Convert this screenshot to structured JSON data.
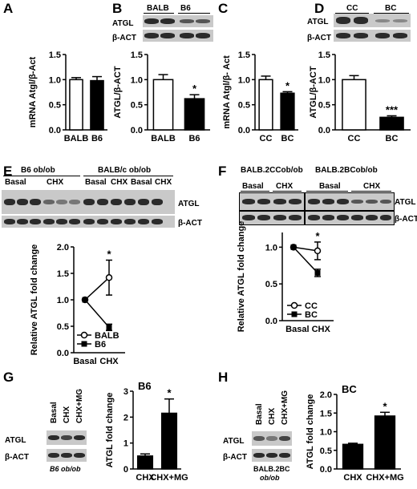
{
  "panels": {
    "A": {
      "letter": "A",
      "ylabel": "mRNA Atgl/β-Act",
      "ylabel_italic_parts": [
        "mRNA ",
        "Atgl",
        "/",
        "β-Act"
      ],
      "chart_data": {
        "type": "bar",
        "categories": [
          "BALB",
          "B6"
        ],
        "values": [
          1.0,
          0.98
        ],
        "errors": [
          0.04,
          0.08
        ],
        "ylim": [
          0,
          1.5
        ],
        "yticks": [
          "0.0",
          "0.5",
          "1.0",
          "1.5"
        ],
        "fills": [
          "#ffffff",
          "#000000"
        ],
        "ylabel": "mRNA Atgl/β-Act",
        "significance": [
          "",
          ""
        ]
      }
    },
    "B": {
      "letter": "B",
      "blot_headers": [
        "BALB",
        "B6"
      ],
      "blot_rows": [
        "ATGL",
        "β-ACT"
      ],
      "chart_data": {
        "type": "bar",
        "categories": [
          "BALB",
          "B6"
        ],
        "values": [
          1.0,
          0.62
        ],
        "errors": [
          0.1,
          0.08
        ],
        "ylim": [
          0,
          1.5
        ],
        "yticks": [
          "0.0",
          "0.5",
          "1.0",
          "1.5"
        ],
        "fills": [
          "#ffffff",
          "#000000"
        ],
        "ylabel": "ATGL/β-ACT",
        "significance": [
          "",
          "*"
        ]
      }
    },
    "C": {
      "letter": "C",
      "chart_data": {
        "type": "bar",
        "categories": [
          "CC",
          "BC"
        ],
        "values": [
          1.0,
          0.73
        ],
        "errors": [
          0.07,
          0.03
        ],
        "ylim": [
          0,
          1.5
        ],
        "yticks": [
          "0.0",
          "0.5",
          "1.0",
          "1.5"
        ],
        "fills": [
          "#ffffff",
          "#000000"
        ],
        "ylabel": "mRNA Atgl/β- Act",
        "significance": [
          "",
          "*"
        ]
      }
    },
    "D": {
      "letter": "D",
      "blot_headers": [
        "CC",
        "BC"
      ],
      "blot_rows": [
        "ATGL",
        "β-ACT"
      ],
      "chart_data": {
        "type": "bar",
        "categories": [
          "CC",
          "BC"
        ],
        "values": [
          1.0,
          0.25
        ],
        "errors": [
          0.08,
          0.03
        ],
        "ylim": [
          0,
          1.5
        ],
        "yticks": [
          "0.0",
          "0.5",
          "1.0",
          "1.5"
        ],
        "fills": [
          "#ffffff",
          "#000000"
        ],
        "ylabel": "ATGL/β-ACT",
        "significance": [
          "",
          "***"
        ]
      }
    },
    "E": {
      "letter": "E",
      "group_headers": [
        "B6 ob/ob",
        "BALB/c ob/ob"
      ],
      "lane_labels": [
        "Basal",
        "CHX",
        "Basal",
        "CHX",
        "Basal",
        "CHX"
      ],
      "blot_rows": [
        "ATGL",
        "β-ACT"
      ],
      "chart_data": {
        "type": "line",
        "x": [
          "Basal",
          "CHX"
        ],
        "ylim": [
          0,
          2
        ],
        "yticks": [
          "0.0",
          "0.5",
          "1.0",
          "1.5",
          "2.0"
        ],
        "ylabel": "Relative ATGL fold change",
        "series": [
          {
            "name": "BALB",
            "values": [
              1.0,
              1.42
            ],
            "errors": [
              0,
              0.33
            ],
            "marker": "open"
          },
          {
            "name": "B6",
            "values": [
              1.0,
              0.48
            ],
            "errors": [
              0,
              0.06
            ],
            "marker": "filled"
          }
        ],
        "significance": "*"
      }
    },
    "F": {
      "letter": "F",
      "group_headers": [
        "BALB.2CCob/ob",
        "BALB.2BCob/ob"
      ],
      "lane_labels": [
        "Basal",
        "CHX",
        "Basal",
        "CHX"
      ],
      "blot_rows": [
        "ATGL",
        "β-ACT"
      ],
      "chart_data": {
        "type": "line",
        "x": [
          "Basal",
          "CHX"
        ],
        "ylim": [
          0,
          1.2
        ],
        "yticks": [
          "0.0",
          "0.5",
          "1.0"
        ],
        "ylabel": "Relative ATGL fold change",
        "xlabel": "Basal CHX",
        "series": [
          {
            "name": "CC",
            "values": [
              1.0,
              0.95
            ],
            "errors": [
              0,
              0.12
            ],
            "marker": "open"
          },
          {
            "name": "BC",
            "values": [
              1.0,
              0.65
            ],
            "errors": [
              0,
              0.05
            ],
            "marker": "filled"
          }
        ],
        "significance": "*"
      }
    },
    "G": {
      "letter": "G",
      "lane_labels": [
        "Basal",
        "CHX",
        "CHX+MG"
      ],
      "blot_rows": [
        "ATGL",
        "β-ACT"
      ],
      "blot_caption": "B6 ob/ob",
      "chart_data": {
        "type": "bar",
        "title": "B6",
        "categories": [
          "CHX",
          "CHX+MG"
        ],
        "values": [
          0.5,
          2.15
        ],
        "errors": [
          0.08,
          0.55
        ],
        "ylim": [
          0,
          3
        ],
        "yticks": [
          "0",
          "1",
          "2",
          "3"
        ],
        "fills": [
          "#000000",
          "#000000"
        ],
        "ylabel": "ATGL fold change",
        "significance": [
          "",
          "*"
        ]
      }
    },
    "H": {
      "letter": "H",
      "lane_labels": [
        "Basal",
        "CHX",
        "CHX+MG"
      ],
      "blot_rows": [
        "ATGL",
        "β-ACT"
      ],
      "blot_caption_1": "BALB.2BC",
      "blot_caption_2": "ob/ob",
      "chart_data": {
        "type": "bar",
        "title": "BC",
        "categories": [
          "CHX",
          "CHX+MG"
        ],
        "values": [
          0.66,
          1.42
        ],
        "errors": [
          0.03,
          0.1
        ],
        "ylim": [
          0,
          2
        ],
        "yticks": [
          "0.0",
          "0.5",
          "1.0",
          "1.5",
          "2.0"
        ],
        "fills": [
          "#000000",
          "#000000"
        ],
        "ylabel": "ATGL fold change",
        "significance": [
          "",
          "*"
        ]
      }
    }
  }
}
